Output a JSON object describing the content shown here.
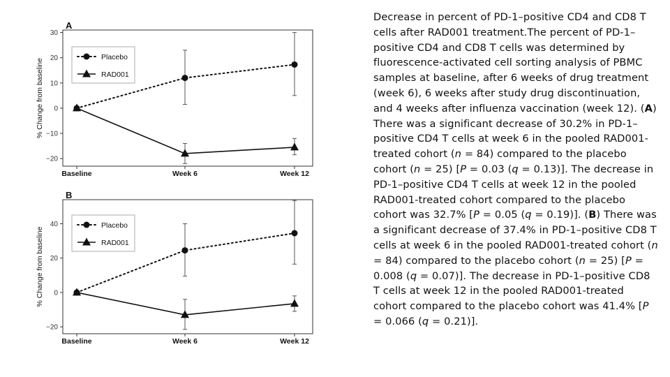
{
  "chart_data": [
    {
      "panel_label": "A",
      "type": "line",
      "categories": [
        "Baseline",
        "Week 6",
        "Week 12"
      ],
      "ylabel": "% Change from baseline",
      "xlabel": "",
      "ylim": [
        -23,
        31
      ],
      "yticks": [
        -20,
        -10,
        0,
        10,
        20,
        30
      ],
      "ytick_labels": [
        "−20",
        "−10",
        "0",
        "10",
        "20",
        "30"
      ],
      "grid": false,
      "legend": "top-left",
      "series": [
        {
          "name": "Placebo",
          "marker": "circle",
          "line": "dotted",
          "values": [
            0,
            12,
            17.3
          ],
          "err_low": [
            0,
            1.5,
            5
          ],
          "err_high": [
            0,
            23,
            30
          ]
        },
        {
          "name": "RAD001",
          "marker": "triangle",
          "line": "solid",
          "values": [
            0,
            -18,
            -15.5
          ],
          "err_low": [
            0,
            -22,
            -18.5
          ],
          "err_high": [
            0,
            -14,
            -12
          ]
        }
      ]
    },
    {
      "panel_label": "B",
      "type": "line",
      "categories": [
        "Baseline",
        "Week 6",
        "Week 12"
      ],
      "ylabel": "% Change from baseline",
      "xlabel": "",
      "ylim": [
        -24,
        54
      ],
      "yticks": [
        -20,
        0,
        20,
        40
      ],
      "ytick_labels": [
        "−20",
        "0",
        "20",
        "40"
      ],
      "grid": false,
      "legend": "top-left",
      "series": [
        {
          "name": "Placebo",
          "marker": "circle",
          "line": "dotted",
          "values": [
            0,
            24.5,
            34.5
          ],
          "err_low": [
            0,
            9.5,
            16.5
          ],
          "err_high": [
            0,
            40,
            53.5
          ]
        },
        {
          "name": "RAD001",
          "marker": "triangle",
          "line": "solid",
          "values": [
            0,
            -13,
            -6.5
          ],
          "err_low": [
            0,
            -21.5,
            -11
          ],
          "err_high": [
            0,
            -4,
            -2
          ]
        }
      ]
    }
  ],
  "caption": {
    "p1": "Decrease in percent of PD-1–positive CD4 and CD8 T cells after RAD001 treatment.The percent of PD-1–positive CD4 and CD8 T cells was determined by fluorescence-activated cell sorting analysis of PBMC samples at baseline, after 6 weeks of drug treatment (week 6), 6 weeks after study drug discontinuation, and 4 weeks after influenza vaccination (week 12). (",
    "a": "A",
    "p2": ") There was a significant decrease of 30.2% in PD-1–positive CD4 T cells at week 6 in the pooled RAD001-treated cohort (",
    "n1": "n",
    "p3": " = 84) compared to the placebo cohort (",
    "n2": "n",
    "p4": " = 25) [",
    "P1": "P",
    "p5": " = 0.03 (",
    "q1": "q",
    "p6": " = 0.13)]. The decrease in PD-1–positive CD4 T cells at week 12 in the pooled RAD001-treated cohort compared to the placebo cohort was 32.7% [",
    "P2": "P",
    "p7": " = 0.05 (",
    "q2": "q",
    "p8": " = 0.19)]. (",
    "b": "B",
    "p9": ") There was a significant decrease of 37.4% in PD-1–positive CD8 T cells at week 6 in the pooled RAD001-treated cohort (",
    "n3": "n",
    "p10": " = 84) compared to the placebo cohort (",
    "n4": "n",
    "p11": " = 25) [",
    "P3": "P",
    "p12": " = 0.008 (",
    "q3": "q",
    "p13": " = 0.07)]. The decrease in PD-1–positive CD8 T cells at week 12 in the pooled RAD001-treated cohort compared to the placebo cohort was 41.4% [",
    "P4": "P",
    "p14": " = 0.066 (",
    "q4": "q",
    "p15": " = 0.21)]."
  }
}
